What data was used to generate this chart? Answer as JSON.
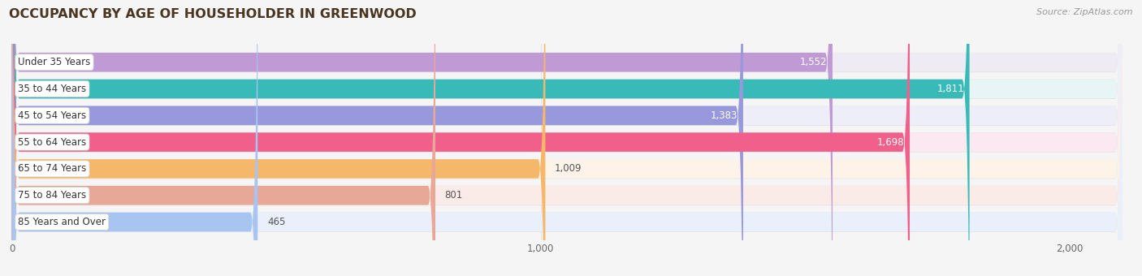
{
  "title": "OCCUPANCY BY AGE OF HOUSEHOLDER IN GREENWOOD",
  "source": "Source: ZipAtlas.com",
  "categories": [
    "Under 35 Years",
    "35 to 44 Years",
    "45 to 54 Years",
    "55 to 64 Years",
    "65 to 74 Years",
    "75 to 84 Years",
    "85 Years and Over"
  ],
  "values": [
    1552,
    1811,
    1383,
    1698,
    1009,
    801,
    465
  ],
  "bar_colors": [
    "#c09ad5",
    "#38bbb8",
    "#9898dc",
    "#f0608a",
    "#f5b86a",
    "#e8a898",
    "#a8c4f0"
  ],
  "bar_bg_colors": [
    "#eeebf5",
    "#e8f5f5",
    "#eeeef8",
    "#fce8f0",
    "#fef3e8",
    "#faeae8",
    "#eaf0fb"
  ],
  "value_labels": [
    "1,552",
    "1,811",
    "1,383",
    "1,698",
    "1,009",
    "801",
    "465"
  ],
  "xmax": 2100,
  "x_axis_max": 2000,
  "background_color": "#f5f5f5",
  "title_color": "#4a3520",
  "title_fontsize": 11.5,
  "label_fontsize": 8.5,
  "value_fontsize": 8.5,
  "source_fontsize": 8.0,
  "bar_height": 0.72,
  "bar_gap": 0.28
}
